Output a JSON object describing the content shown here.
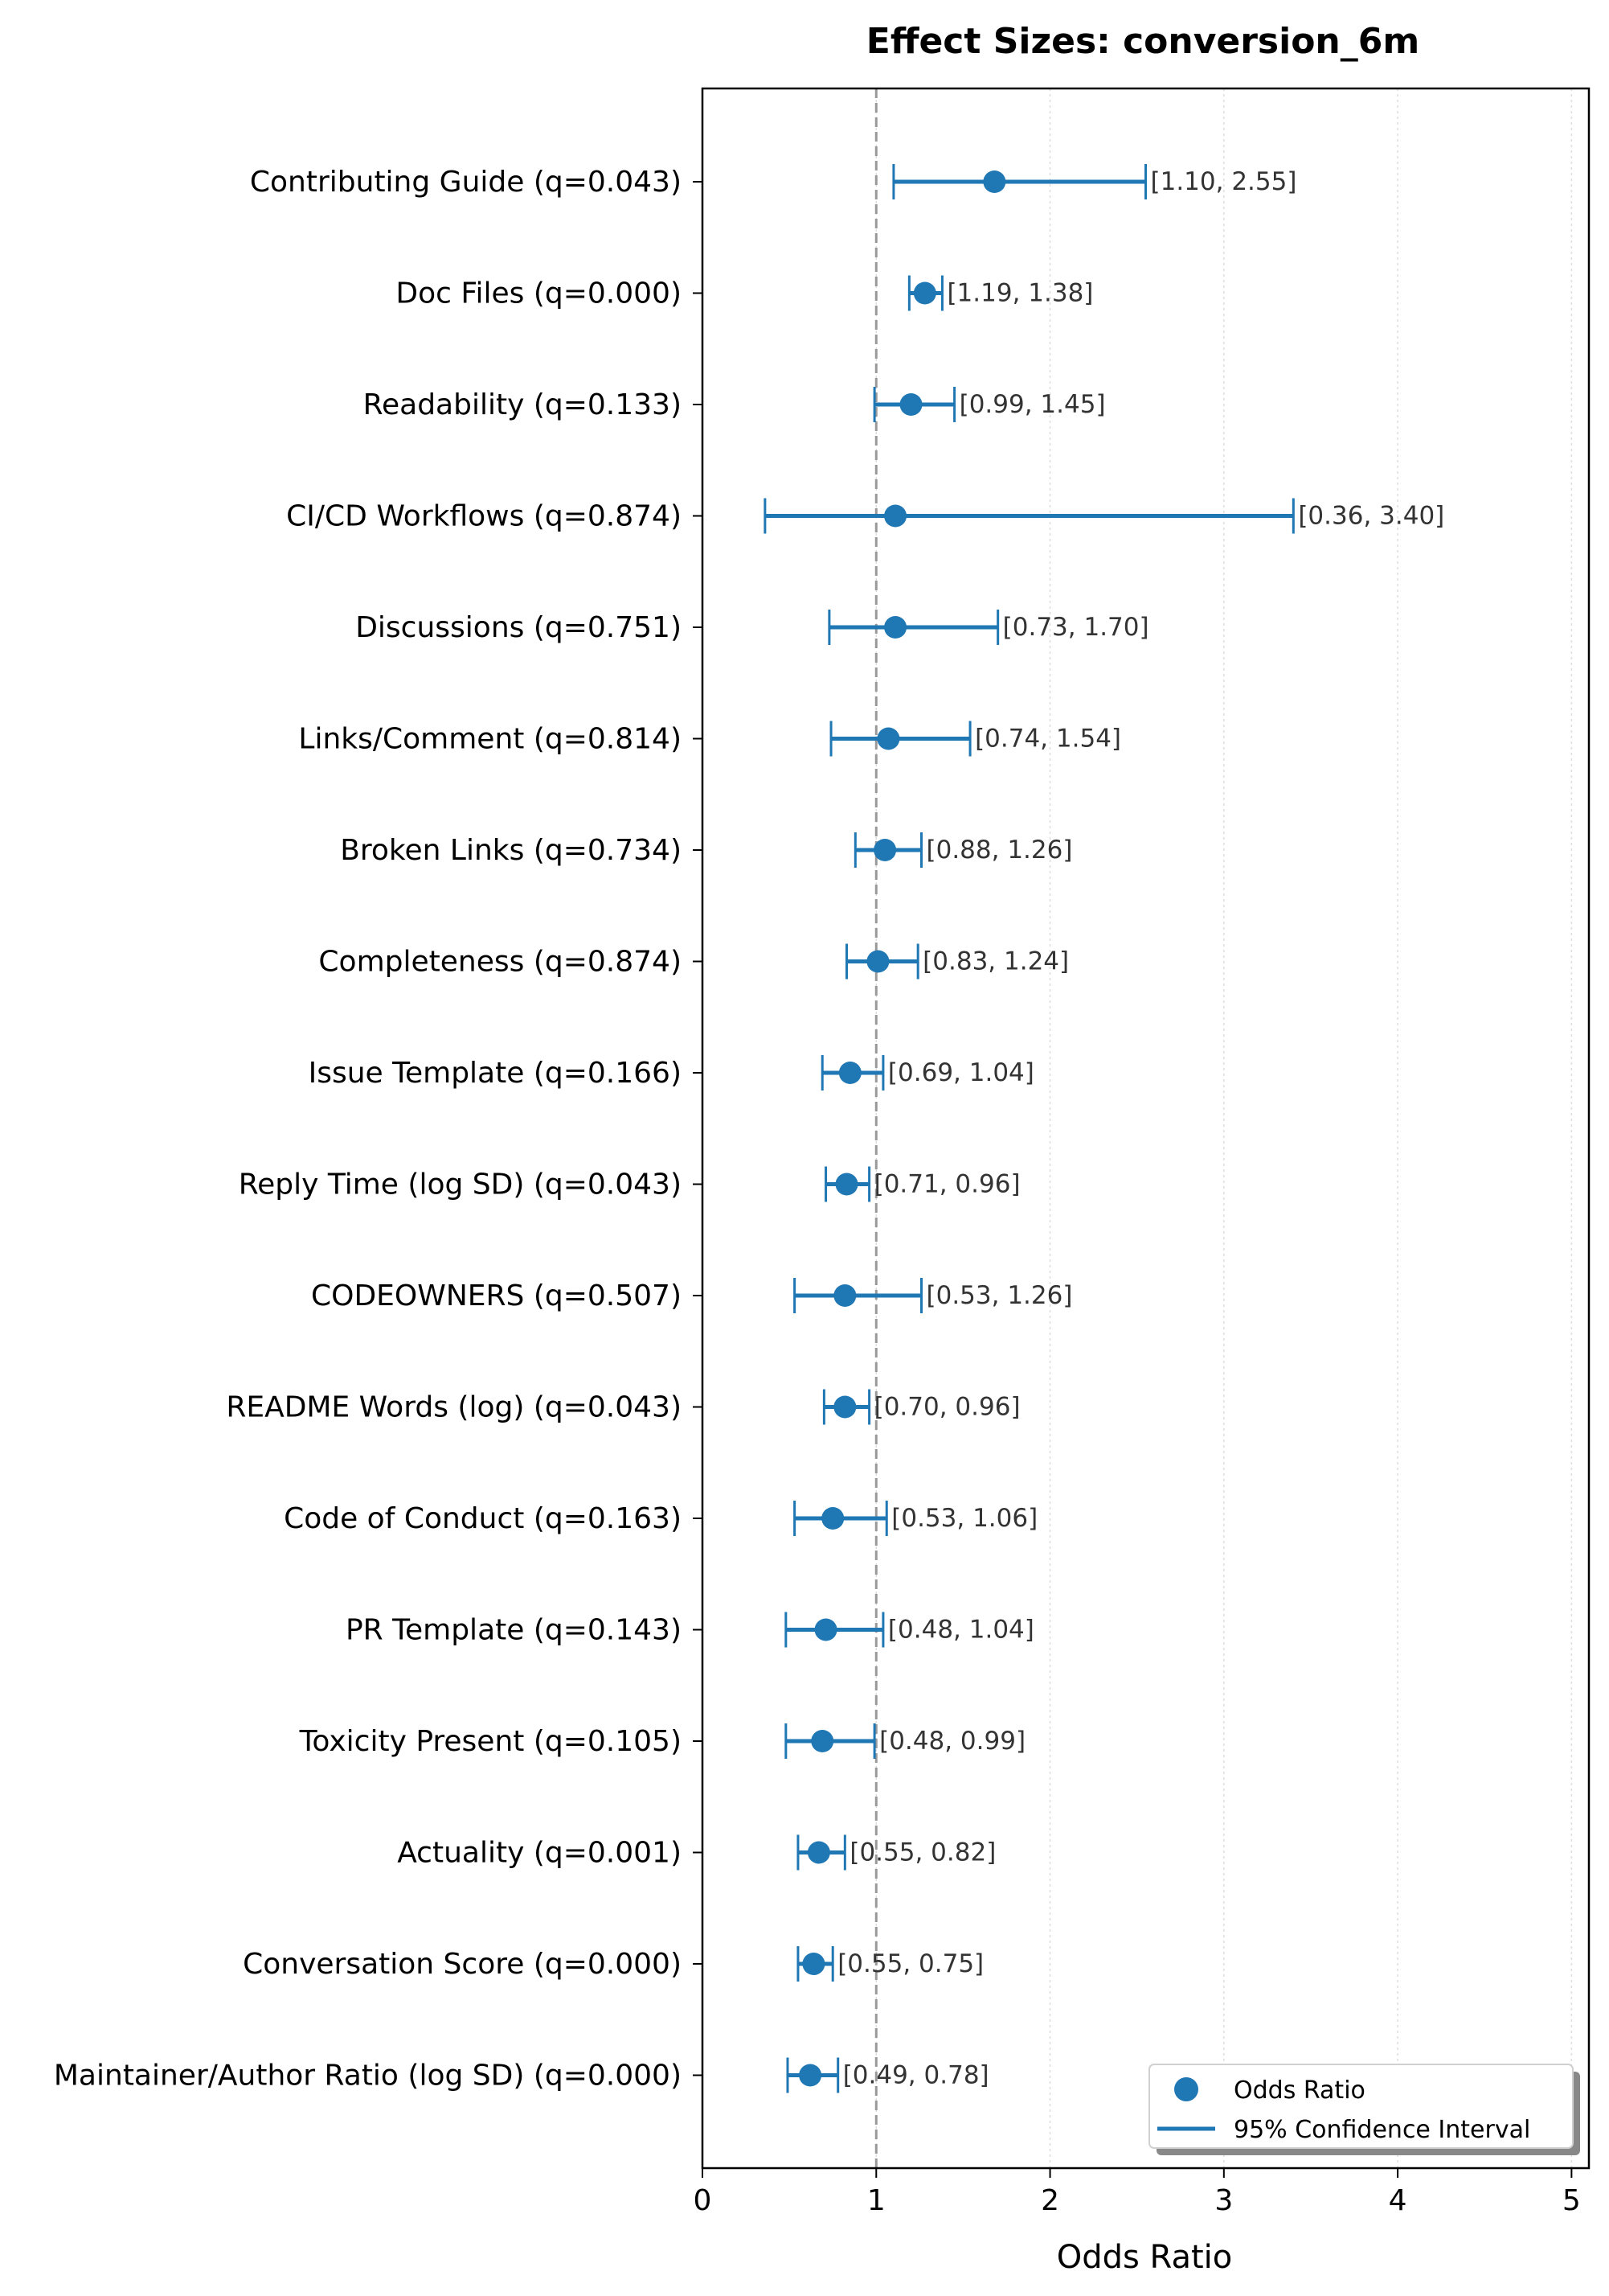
{
  "chart_data": {
    "type": "forest",
    "title": "Effect Sizes: conversion_6m",
    "xlabel": "Odds Ratio",
    "ylabel": "",
    "xlim": [
      0,
      5.1
    ],
    "xticks": [
      "0",
      "1",
      "2",
      "3",
      "4",
      "5"
    ],
    "reference_line": 1,
    "grid": "x, dotted",
    "legend": {
      "position": "bottom-right",
      "entries": [
        "Odds Ratio",
        "95% Confidence Interval"
      ]
    },
    "color": "#1f77b4",
    "rows": [
      {
        "label": "Contributing Guide (q=0.043)",
        "or": 1.68,
        "lo": 1.1,
        "hi": 2.55,
        "ci_label": "[1.10, 2.55]"
      },
      {
        "label": "Doc Files (q=0.000)",
        "or": 1.28,
        "lo": 1.19,
        "hi": 1.38,
        "ci_label": "[1.19, 1.38]"
      },
      {
        "label": "Readability (q=0.133)",
        "or": 1.2,
        "lo": 0.99,
        "hi": 1.45,
        "ci_label": "[0.99, 1.45]"
      },
      {
        "label": "CI/CD Workflows (q=0.874)",
        "or": 1.11,
        "lo": 0.36,
        "hi": 3.4,
        "ci_label": "[0.36, 3.40]"
      },
      {
        "label": "Discussions (q=0.751)",
        "or": 1.11,
        "lo": 0.73,
        "hi": 1.7,
        "ci_label": "[0.73, 1.70]"
      },
      {
        "label": "Links/Comment (q=0.814)",
        "or": 1.07,
        "lo": 0.74,
        "hi": 1.54,
        "ci_label": "[0.74, 1.54]"
      },
      {
        "label": "Broken Links (q=0.734)",
        "or": 1.05,
        "lo": 0.88,
        "hi": 1.26,
        "ci_label": "[0.88, 1.26]"
      },
      {
        "label": "Completeness (q=0.874)",
        "or": 1.01,
        "lo": 0.83,
        "hi": 1.24,
        "ci_label": "[0.83, 1.24]"
      },
      {
        "label": "Issue Template (q=0.166)",
        "or": 0.85,
        "lo": 0.69,
        "hi": 1.04,
        "ci_label": "[0.69, 1.04]"
      },
      {
        "label": "Reply Time (log SD) (q=0.043)",
        "or": 0.83,
        "lo": 0.71,
        "hi": 0.96,
        "ci_label": "[0.71, 0.96]"
      },
      {
        "label": "CODEOWNERS (q=0.507)",
        "or": 0.82,
        "lo": 0.53,
        "hi": 1.26,
        "ci_label": "[0.53, 1.26]"
      },
      {
        "label": "README Words (log) (q=0.043)",
        "or": 0.82,
        "lo": 0.7,
        "hi": 0.96,
        "ci_label": "[0.70, 0.96]"
      },
      {
        "label": "Code of Conduct (q=0.163)",
        "or": 0.75,
        "lo": 0.53,
        "hi": 1.06,
        "ci_label": "[0.53, 1.06]"
      },
      {
        "label": "PR Template (q=0.143)",
        "or": 0.71,
        "lo": 0.48,
        "hi": 1.04,
        "ci_label": "[0.48, 1.04]"
      },
      {
        "label": "Toxicity Present (q=0.105)",
        "or": 0.69,
        "lo": 0.48,
        "hi": 0.99,
        "ci_label": "[0.48, 0.99]"
      },
      {
        "label": "Actuality (q=0.001)",
        "or": 0.67,
        "lo": 0.55,
        "hi": 0.82,
        "ci_label": "[0.55, 0.82]"
      },
      {
        "label": "Conversation Score (q=0.000)",
        "or": 0.64,
        "lo": 0.55,
        "hi": 0.75,
        "ci_label": "[0.55, 0.75]"
      },
      {
        "label": "Maintainer/Author Ratio (log SD) (q=0.000)",
        "or": 0.62,
        "lo": 0.49,
        "hi": 0.78,
        "ci_label": "[0.49, 0.78]"
      }
    ]
  }
}
